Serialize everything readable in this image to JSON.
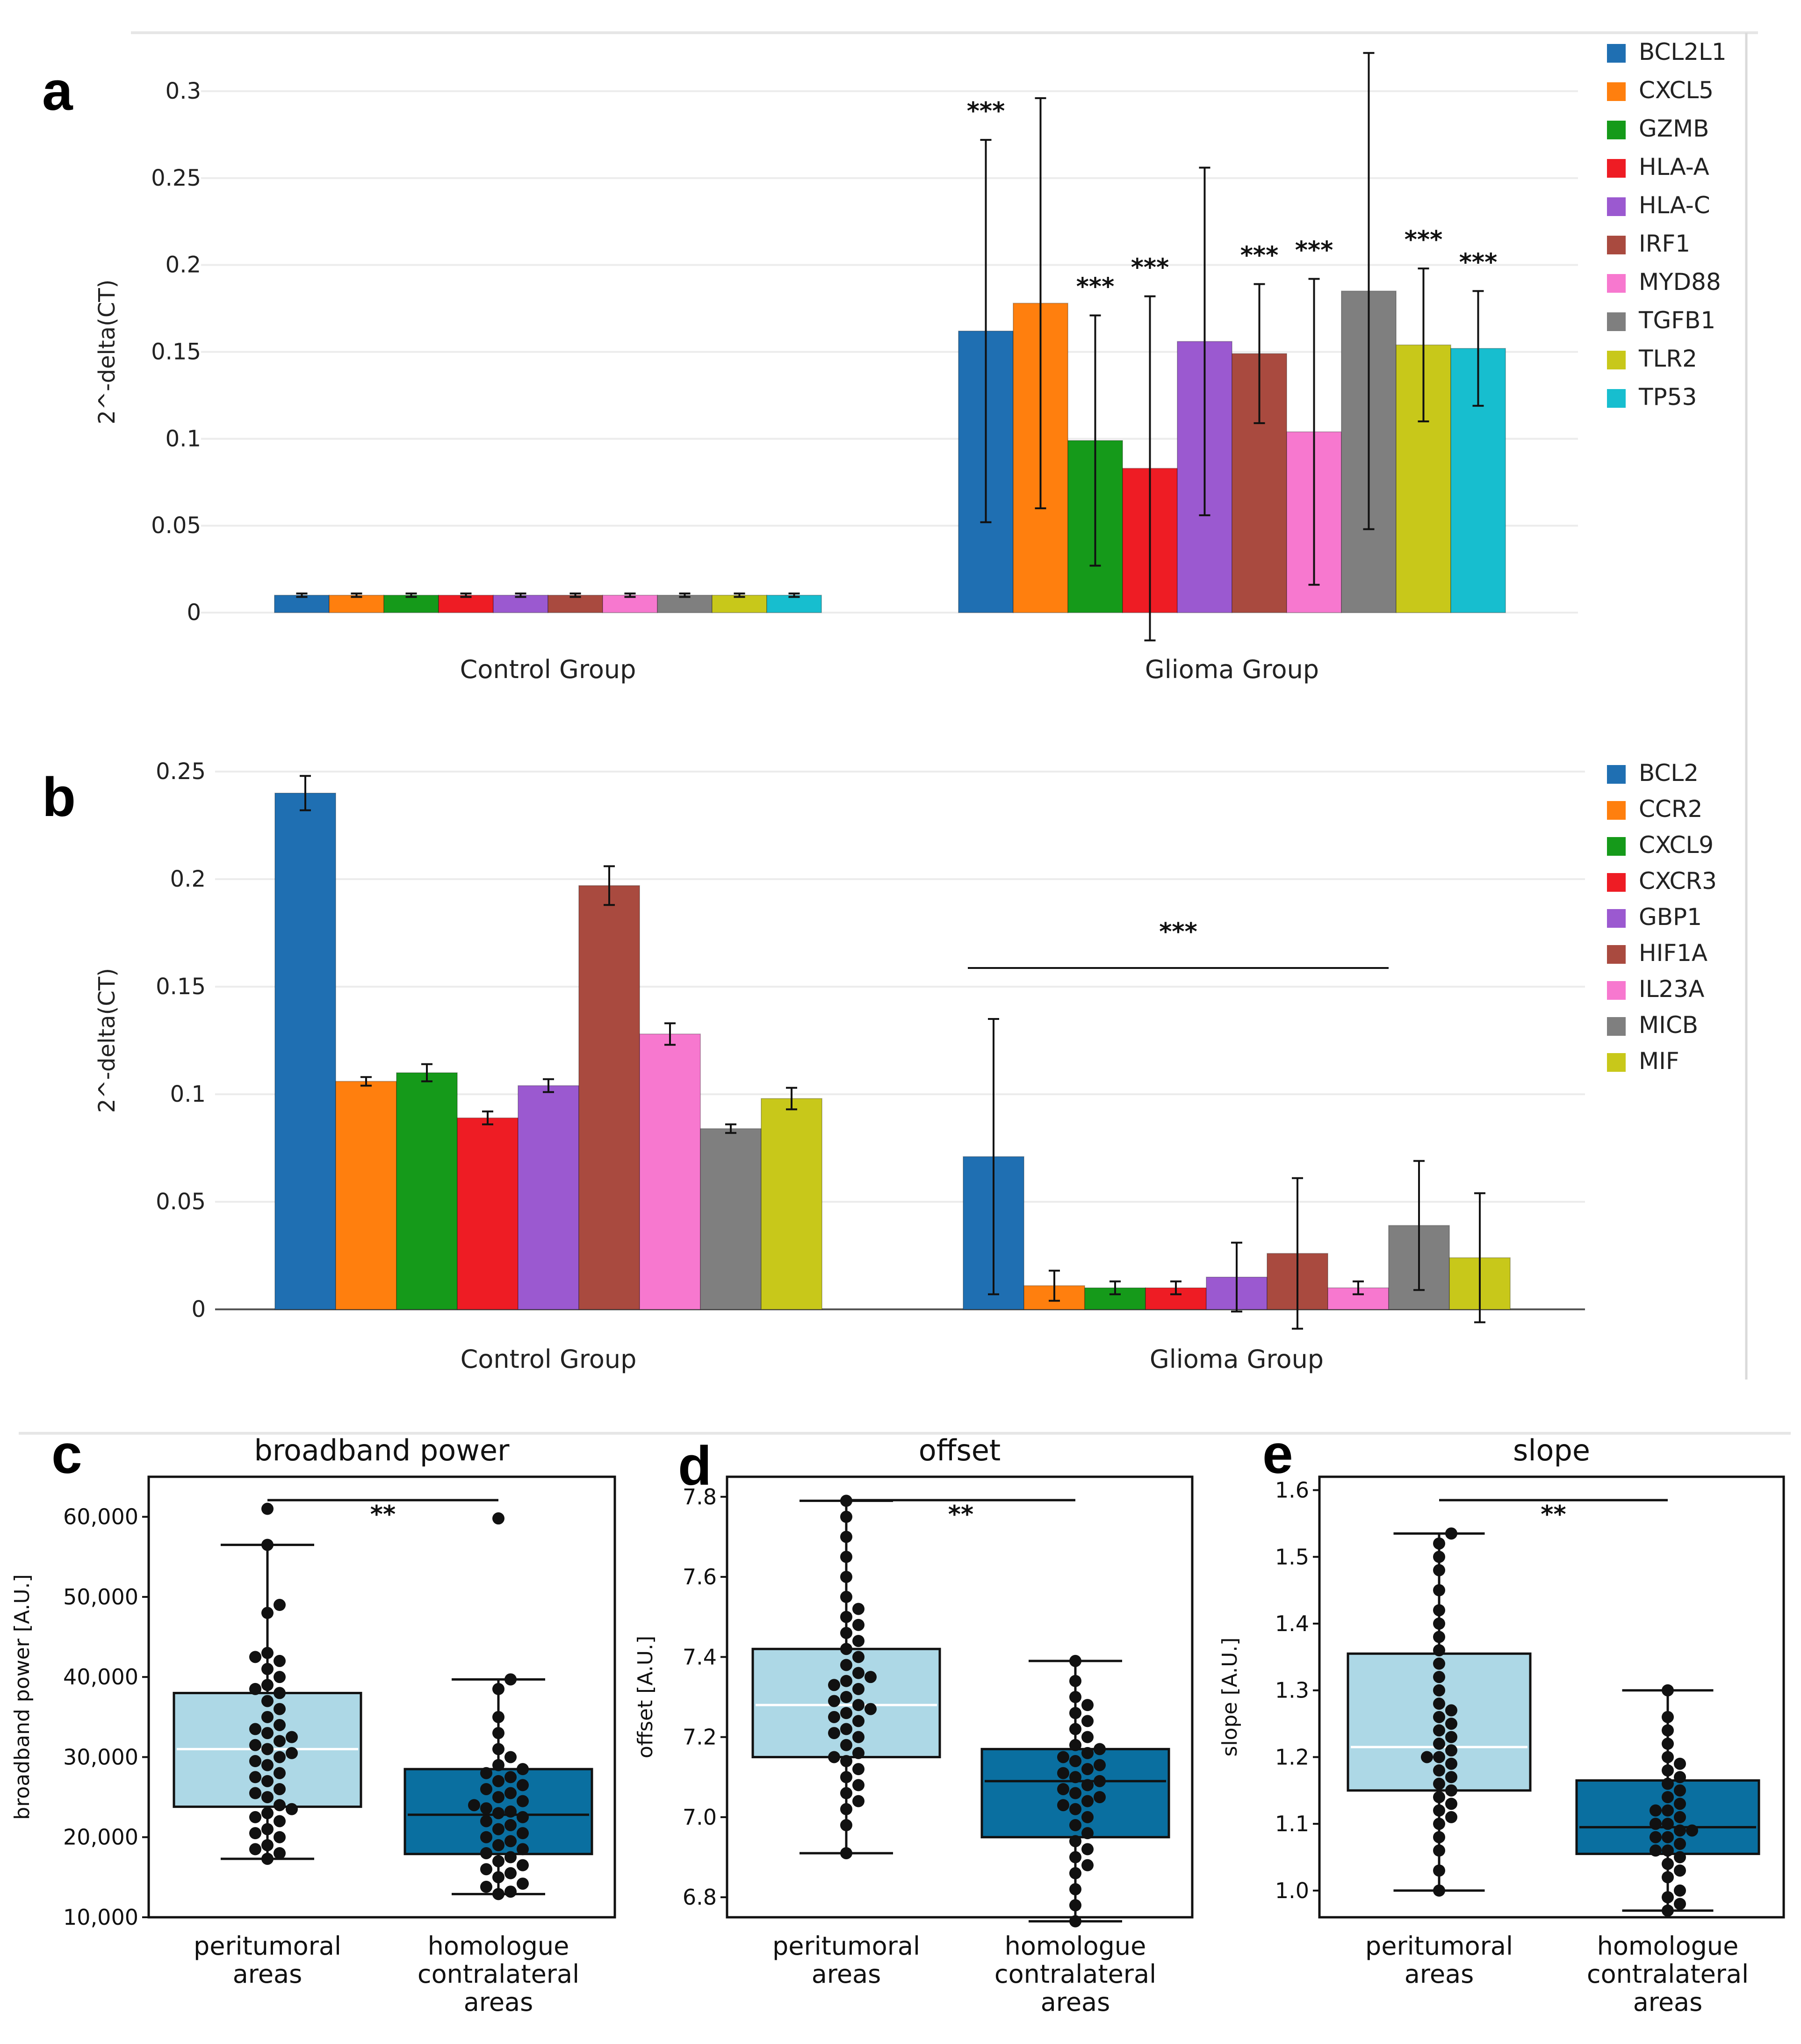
{
  "colors": {
    "BCL2L1": "#1f6fb2",
    "CXCL5": "#ff7f0e",
    "GZMB": "#159a1a",
    "HLA-A": "#ee1c24",
    "HLA-C": "#9b59d0",
    "IRF1": "#a94a3f",
    "MYD88": "#f778cf",
    "TGFB1": "#7f7f7f",
    "TLR2": "#c8c81a",
    "TP53": "#17becf",
    "BCL2": "#1f6fb2",
    "CCR2": "#ff7f0e",
    "CXCL9": "#159a1a",
    "CXCR3": "#ee1c24",
    "GBP1": "#9b59d0",
    "HIF1A": "#a94a3f",
    "IL23A": "#f778cf",
    "MICB": "#7f7f7f",
    "MIF": "#c8c81a",
    "box_light": "#add8e6",
    "box_dark": "#0a6fa0"
  },
  "chart_data": [
    {
      "panel": "a",
      "type": "bar",
      "ylabel": "2^-delta(CT)",
      "ylim": [
        0,
        0.3
      ],
      "yticks": [
        "0",
        "0.05",
        "0.1",
        "0.15",
        "0.2",
        "0.25",
        "0.3"
      ],
      "categories": [
        "Control Group",
        "Glioma Group"
      ],
      "series": [
        {
          "name": "BCL2L1",
          "values": [
            0.01,
            0.162
          ],
          "err": [
            0.001,
            0.11
          ]
        },
        {
          "name": "CXCL5",
          "values": [
            0.01,
            0.178
          ],
          "err": [
            0.001,
            0.118
          ]
        },
        {
          "name": "GZMB",
          "values": [
            0.01,
            0.099
          ],
          "err": [
            0.001,
            0.072
          ]
        },
        {
          "name": "HLA-A",
          "values": [
            0.01,
            0.083
          ],
          "err": [
            0.001,
            0.099
          ]
        },
        {
          "name": "HLA-C",
          "values": [
            0.01,
            0.156
          ],
          "err": [
            0.001,
            0.1
          ]
        },
        {
          "name": "IRF1",
          "values": [
            0.01,
            0.149
          ],
          "err": [
            0.001,
            0.04
          ]
        },
        {
          "name": "MYD88",
          "values": [
            0.01,
            0.104
          ],
          "err": [
            0.001,
            0.088
          ]
        },
        {
          "name": "TGFB1",
          "values": [
            0.01,
            0.185
          ],
          "err": [
            0.001,
            0.137
          ]
        },
        {
          "name": "TLR2",
          "values": [
            0.01,
            0.154
          ],
          "err": [
            0.001,
            0.044
          ]
        },
        {
          "name": "TP53",
          "values": [
            0.01,
            0.152
          ],
          "err": [
            0.001,
            0.033
          ]
        }
      ],
      "annotations": [
        {
          "text": "***",
          "series": 0
        },
        {
          "text": "***",
          "series": 2
        },
        {
          "text": "***",
          "series": 3
        },
        {
          "text": "***",
          "series": 5
        },
        {
          "text": "***",
          "series": 6
        },
        {
          "text": "***",
          "series": 8
        },
        {
          "text": "***",
          "series": 9
        }
      ]
    },
    {
      "panel": "b",
      "type": "bar",
      "ylabel": "2^-delta(CT)",
      "ylim": [
        0,
        0.25
      ],
      "yticks": [
        "0",
        "0.05",
        "0.1",
        "0.15",
        "0.2",
        "0.25"
      ],
      "categories": [
        "Control Group",
        "Glioma Group"
      ],
      "series": [
        {
          "name": "BCL2",
          "values": [
            0.24,
            0.071
          ],
          "err": [
            0.008,
            0.064
          ]
        },
        {
          "name": "CCR2",
          "values": [
            0.106,
            0.011
          ],
          "err": [
            0.002,
            0.007
          ]
        },
        {
          "name": "CXCL9",
          "values": [
            0.11,
            0.01
          ],
          "err": [
            0.004,
            0.003
          ]
        },
        {
          "name": "CXCR3",
          "values": [
            0.089,
            0.01
          ],
          "err": [
            0.003,
            0.003
          ]
        },
        {
          "name": "GBP1",
          "values": [
            0.104,
            0.015
          ],
          "err": [
            0.003,
            0.016
          ]
        },
        {
          "name": "HIF1A",
          "values": [
            0.197,
            0.026
          ],
          "err": [
            0.009,
            0.035
          ]
        },
        {
          "name": "IL23A",
          "values": [
            0.128,
            0.01
          ],
          "err": [
            0.005,
            0.003
          ]
        },
        {
          "name": "MICB",
          "values": [
            0.084,
            0.039
          ],
          "err": [
            0.002,
            0.03
          ]
        },
        {
          "name": "MIF",
          "values": [
            0.098,
            0.024
          ],
          "err": [
            0.005,
            0.03
          ]
        }
      ],
      "annotations": [
        {
          "text": "***",
          "span": "Glioma Group"
        }
      ]
    },
    {
      "panel": "c",
      "type": "box",
      "title": "broadband power",
      "ylabel": "broadband power [A.U.]",
      "ylim": [
        10000,
        65000
      ],
      "yticks": [
        "10,000",
        "20,000",
        "30,000",
        "40,000",
        "50,000",
        "60,000"
      ],
      "categories": [
        "peritumoral\nareas",
        "homologue\ncontralateral\nareas"
      ],
      "boxes": [
        {
          "q1": 23800,
          "median": 31000,
          "q3": 38000,
          "whislo": 17300,
          "whishi": 56500,
          "fliers": [
            61000
          ]
        },
        {
          "q1": 17900,
          "median": 22800,
          "q3": 28500,
          "whislo": 12900,
          "whishi": 39700,
          "fliers": [
            59800
          ]
        }
      ],
      "points": [
        [
          17300,
          18000,
          18500,
          19000,
          20000,
          20500,
          21000,
          22000,
          22500,
          23000,
          23500,
          24000,
          25000,
          25500,
          26000,
          27000,
          27500,
          28000,
          29000,
          29500,
          30000,
          30500,
          31000,
          31500,
          32000,
          32500,
          33000,
          33500,
          34000,
          35000,
          36000,
          37000,
          38000,
          38500,
          39000,
          40000,
          41000,
          42000,
          42500,
          43000,
          48000,
          49000,
          56500,
          61000
        ],
        [
          12900,
          13200,
          13800,
          14200,
          15000,
          15500,
          16000,
          16500,
          17000,
          17500,
          18000,
          18500,
          19000,
          19500,
          20000,
          20500,
          21000,
          21500,
          22000,
          22500,
          23000,
          23200,
          23600,
          24000,
          24500,
          25000,
          25500,
          26000,
          26500,
          27000,
          27500,
          28000,
          28500,
          29000,
          30000,
          31000,
          33000,
          35000,
          38500,
          39700,
          59800
        ]
      ],
      "significance": "**"
    },
    {
      "panel": "d",
      "type": "box",
      "title": "offset",
      "ylabel": "offset [A.U.]",
      "ylim": [
        6.75,
        7.85
      ],
      "yticks": [
        "6.8",
        "7.0",
        "7.2",
        "7.4",
        "7.6",
        "7.8"
      ],
      "categories": [
        "peritumoral\nareas",
        "homologue\ncontralateral\nareas"
      ],
      "boxes": [
        {
          "q1": 7.15,
          "median": 7.28,
          "q3": 7.42,
          "whislo": 6.91,
          "whishi": 7.79,
          "fliers": []
        },
        {
          "q1": 6.95,
          "median": 7.09,
          "q3": 7.17,
          "whislo": 6.74,
          "whishi": 7.39,
          "fliers": []
        }
      ],
      "points": [
        [
          6.91,
          6.98,
          7.02,
          7.04,
          7.06,
          7.08,
          7.1,
          7.12,
          7.14,
          7.15,
          7.16,
          7.18,
          7.2,
          7.21,
          7.22,
          7.24,
          7.25,
          7.26,
          7.27,
          7.28,
          7.29,
          7.3,
          7.32,
          7.33,
          7.34,
          7.35,
          7.36,
          7.38,
          7.4,
          7.42,
          7.44,
          7.46,
          7.48,
          7.5,
          7.52,
          7.55,
          7.6,
          7.65,
          7.7,
          7.75,
          7.79
        ],
        [
          6.74,
          6.78,
          6.82,
          6.86,
          6.88,
          6.9,
          6.92,
          6.94,
          6.96,
          6.98,
          7.0,
          7.02,
          7.03,
          7.04,
          7.05,
          7.06,
          7.07,
          7.08,
          7.09,
          7.1,
          7.11,
          7.12,
          7.13,
          7.14,
          7.15,
          7.16,
          7.17,
          7.18,
          7.2,
          7.22,
          7.24,
          7.26,
          7.28,
          7.3,
          7.34,
          7.39
        ]
      ],
      "significance": "**"
    },
    {
      "panel": "e",
      "type": "box",
      "title": "slope",
      "ylabel": "slope [A.U.]",
      "ylim": [
        0.96,
        1.62
      ],
      "yticks": [
        "1.0",
        "1.1",
        "1.2",
        "1.3",
        "1.4",
        "1.5",
        "1.6"
      ],
      "categories": [
        "peritumoral\nareas",
        "homologue\ncontralateral\nareas"
      ],
      "boxes": [
        {
          "q1": 1.15,
          "median": 1.215,
          "q3": 1.355,
          "whislo": 1.0,
          "whishi": 1.535,
          "fliers": []
        },
        {
          "q1": 1.055,
          "median": 1.095,
          "q3": 1.165,
          "whislo": 0.97,
          "whishi": 1.3,
          "fliers": []
        }
      ],
      "points": [
        [
          1.0,
          1.03,
          1.06,
          1.08,
          1.1,
          1.11,
          1.12,
          1.13,
          1.14,
          1.15,
          1.16,
          1.17,
          1.18,
          1.19,
          1.2,
          1.2,
          1.21,
          1.22,
          1.23,
          1.24,
          1.25,
          1.26,
          1.27,
          1.28,
          1.3,
          1.32,
          1.34,
          1.36,
          1.38,
          1.4,
          1.42,
          1.45,
          1.48,
          1.5,
          1.52,
          1.535
        ],
        [
          0.97,
          0.98,
          0.99,
          1.0,
          1.02,
          1.03,
          1.04,
          1.05,
          1.06,
          1.06,
          1.07,
          1.08,
          1.08,
          1.09,
          1.09,
          1.1,
          1.1,
          1.11,
          1.12,
          1.12,
          1.13,
          1.14,
          1.15,
          1.16,
          1.17,
          1.18,
          1.19,
          1.2,
          1.22,
          1.24,
          1.26,
          1.3
        ]
      ],
      "significance": "**"
    }
  ]
}
